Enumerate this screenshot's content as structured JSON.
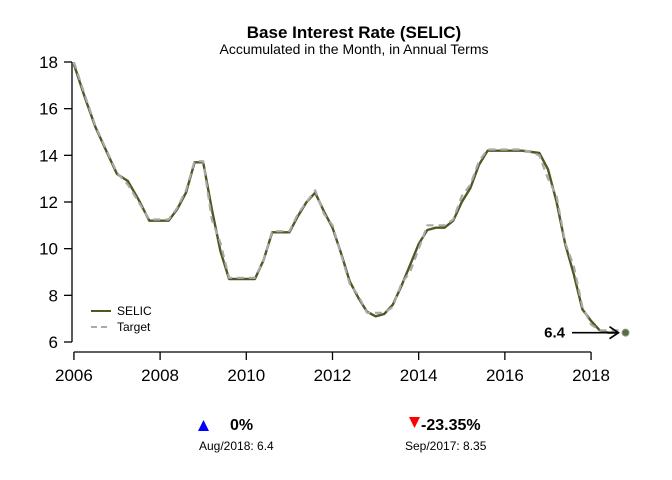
{
  "chart_data": {
    "type": "line",
    "title": "Base Interest Rate (SELIC)",
    "subtitle": "Accumulated in the Month, in Annual Terms",
    "xlim": [
      2005.9,
      2018.95
    ],
    "ylim": [
      6,
      18
    ],
    "x_ticks": [
      2006,
      2008,
      2010,
      2012,
      2014,
      2016,
      2018
    ],
    "y_ticks": [
      6,
      8,
      10,
      12,
      14,
      16,
      18
    ],
    "legend": {
      "position": "bottom-left",
      "entries": [
        "SELIC",
        "Target"
      ]
    },
    "series": [
      {
        "name": "SELIC",
        "color": "#4b5a23",
        "style": "solid",
        "points": [
          [
            2006.0,
            17.9
          ],
          [
            2006.25,
            16.5
          ],
          [
            2006.5,
            15.2
          ],
          [
            2006.75,
            14.2
          ],
          [
            2007.0,
            13.2
          ],
          [
            2007.25,
            12.9
          ],
          [
            2007.5,
            12.1
          ],
          [
            2007.75,
            11.2
          ],
          [
            2008.0,
            11.2
          ],
          [
            2008.2,
            11.2
          ],
          [
            2008.4,
            11.7
          ],
          [
            2008.6,
            12.4
          ],
          [
            2008.8,
            13.7
          ],
          [
            2009.0,
            13.7
          ],
          [
            2009.2,
            11.7
          ],
          [
            2009.4,
            9.9
          ],
          [
            2009.6,
            8.7
          ],
          [
            2009.8,
            8.7
          ],
          [
            2010.0,
            8.7
          ],
          [
            2010.2,
            8.7
          ],
          [
            2010.4,
            9.5
          ],
          [
            2010.6,
            10.7
          ],
          [
            2010.8,
            10.7
          ],
          [
            2011.0,
            10.7
          ],
          [
            2011.2,
            11.4
          ],
          [
            2011.4,
            12.0
          ],
          [
            2011.6,
            12.4
          ],
          [
            2011.8,
            11.6
          ],
          [
            2012.0,
            10.9
          ],
          [
            2012.2,
            9.8
          ],
          [
            2012.4,
            8.6
          ],
          [
            2012.6,
            7.9
          ],
          [
            2012.8,
            7.3
          ],
          [
            2013.0,
            7.1
          ],
          [
            2013.2,
            7.2
          ],
          [
            2013.4,
            7.6
          ],
          [
            2013.6,
            8.4
          ],
          [
            2013.8,
            9.3
          ],
          [
            2014.0,
            10.2
          ],
          [
            2014.2,
            10.8
          ],
          [
            2014.4,
            10.9
          ],
          [
            2014.6,
            10.9
          ],
          [
            2014.8,
            11.2
          ],
          [
            2015.0,
            12.0
          ],
          [
            2015.2,
            12.6
          ],
          [
            2015.4,
            13.6
          ],
          [
            2015.6,
            14.2
          ],
          [
            2015.8,
            14.2
          ],
          [
            2016.0,
            14.2
          ],
          [
            2016.4,
            14.2
          ],
          [
            2016.8,
            14.1
          ],
          [
            2017.0,
            13.4
          ],
          [
            2017.2,
            12.0
          ],
          [
            2017.4,
            10.2
          ],
          [
            2017.6,
            8.9
          ],
          [
            2017.8,
            7.4
          ],
          [
            2018.0,
            6.9
          ],
          [
            2018.2,
            6.5
          ],
          [
            2018.4,
            6.4
          ],
          [
            2018.58,
            6.4
          ]
        ]
      },
      {
        "name": "Target",
        "color": "#a9a9a9",
        "style": "dashed",
        "points": [
          [
            2006.0,
            18.0
          ],
          [
            2006.25,
            16.6
          ],
          [
            2006.5,
            15.25
          ],
          [
            2006.75,
            14.25
          ],
          [
            2007.0,
            13.25
          ],
          [
            2007.25,
            12.75
          ],
          [
            2007.5,
            12.0
          ],
          [
            2007.75,
            11.25
          ],
          [
            2008.0,
            11.25
          ],
          [
            2008.2,
            11.25
          ],
          [
            2008.4,
            11.75
          ],
          [
            2008.6,
            12.5
          ],
          [
            2008.8,
            13.75
          ],
          [
            2009.0,
            13.75
          ],
          [
            2009.2,
            11.25
          ],
          [
            2009.4,
            10.25
          ],
          [
            2009.6,
            8.75
          ],
          [
            2009.8,
            8.75
          ],
          [
            2010.0,
            8.75
          ],
          [
            2010.2,
            8.75
          ],
          [
            2010.4,
            9.5
          ],
          [
            2010.6,
            10.75
          ],
          [
            2010.8,
            10.75
          ],
          [
            2011.0,
            10.75
          ],
          [
            2011.2,
            11.5
          ],
          [
            2011.4,
            12.0
          ],
          [
            2011.6,
            12.5
          ],
          [
            2011.8,
            11.5
          ],
          [
            2012.0,
            11.0
          ],
          [
            2012.2,
            9.75
          ],
          [
            2012.4,
            8.5
          ],
          [
            2012.6,
            8.0
          ],
          [
            2012.8,
            7.25
          ],
          [
            2013.0,
            7.25
          ],
          [
            2013.2,
            7.25
          ],
          [
            2013.4,
            7.5
          ],
          [
            2013.6,
            8.5
          ],
          [
            2013.8,
            9.0
          ],
          [
            2014.0,
            10.0
          ],
          [
            2014.2,
            11.0
          ],
          [
            2014.4,
            11.0
          ],
          [
            2014.6,
            11.0
          ],
          [
            2014.8,
            11.25
          ],
          [
            2015.0,
            12.25
          ],
          [
            2015.2,
            12.75
          ],
          [
            2015.4,
            13.75
          ],
          [
            2015.6,
            14.25
          ],
          [
            2015.8,
            14.25
          ],
          [
            2016.0,
            14.25
          ],
          [
            2016.4,
            14.25
          ],
          [
            2016.8,
            14.0
          ],
          [
            2017.0,
            13.0
          ],
          [
            2017.2,
            12.25
          ],
          [
            2017.4,
            10.25
          ],
          [
            2017.6,
            9.25
          ],
          [
            2017.8,
            7.5
          ],
          [
            2018.0,
            6.75
          ],
          [
            2018.2,
            6.5
          ],
          [
            2018.4,
            6.5
          ],
          [
            2018.58,
            6.5
          ],
          [
            2018.75,
            6.5
          ]
        ]
      }
    ],
    "last_point": {
      "x": 2018.8,
      "y": 6.4,
      "color": "#5a6b4a"
    },
    "callout": {
      "label": "6.4",
      "value": 6.4
    }
  },
  "stats": [
    {
      "arrow": "up",
      "arrow_color": "#0000ff",
      "value": "0%",
      "label": "Aug/2018: 6.4"
    },
    {
      "arrow": "down",
      "arrow_color": "#ff0000",
      "value": "-23.35%",
      "label": "Sep/2017: 8.35"
    }
  ]
}
